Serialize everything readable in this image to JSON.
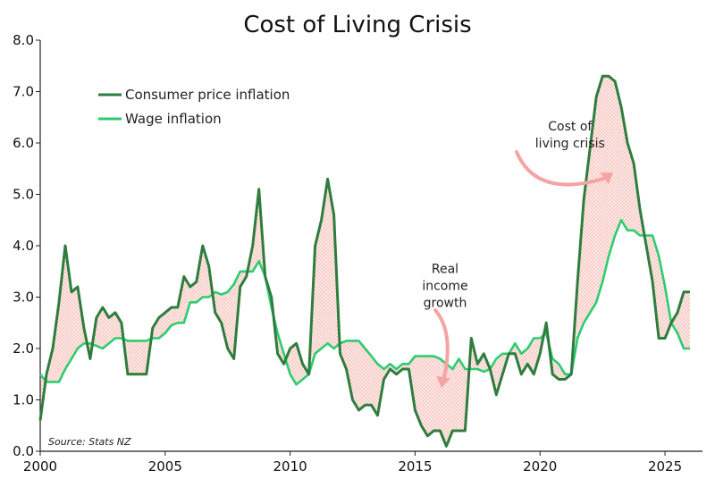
{
  "chart_data": {
    "type": "line",
    "title": "Cost of Living Crisis",
    "source": "Source: Stats NZ",
    "xlim": [
      2000,
      2026.5
    ],
    "ylim": [
      0,
      8
    ],
    "x_ticks": [
      "2000",
      "2005",
      "2010",
      "2015",
      "2020",
      "2025"
    ],
    "y_ticks": [
      "0.0",
      "1.0",
      "2.0",
      "3.0",
      "4.0",
      "5.0",
      "6.0",
      "7.0",
      "8.0"
    ],
    "legend_position": "top-left",
    "colors": {
      "cpi": "#2e7d3e",
      "wage": "#2ecc71",
      "fill": "#f4a9a0",
      "arrow": "#f5a3a3"
    },
    "series": [
      {
        "name": "Consumer price inflation",
        "x": [
          2000.0,
          2000.25,
          2000.5,
          2000.75,
          2001.0,
          2001.25,
          2001.5,
          2001.75,
          2002.0,
          2002.25,
          2002.5,
          2002.75,
          2003.0,
          2003.25,
          2003.5,
          2003.75,
          2004.0,
          2004.25,
          2004.5,
          2004.75,
          2005.0,
          2005.25,
          2005.5,
          2005.75,
          2006.0,
          2006.25,
          2006.5,
          2006.75,
          2007.0,
          2007.25,
          2007.5,
          2007.75,
          2008.0,
          2008.25,
          2008.5,
          2008.75,
          2009.0,
          2009.25,
          2009.5,
          2009.75,
          2010.0,
          2010.25,
          2010.5,
          2010.75,
          2011.0,
          2011.25,
          2011.5,
          2011.75,
          2012.0,
          2012.25,
          2012.5,
          2012.75,
          2013.0,
          2013.25,
          2013.5,
          2013.75,
          2014.0,
          2014.25,
          2014.5,
          2014.75,
          2015.0,
          2015.25,
          2015.5,
          2015.75,
          2016.0,
          2016.25,
          2016.5,
          2016.75,
          2017.0,
          2017.25,
          2017.5,
          2017.75,
          2018.0,
          2018.25,
          2018.5,
          2018.75,
          2019.0,
          2019.25,
          2019.5,
          2019.75,
          2020.0,
          2020.25,
          2020.5,
          2020.75,
          2021.0,
          2021.25,
          2021.5,
          2021.75,
          2022.0,
          2022.25,
          2022.5,
          2022.75,
          2023.0,
          2023.25,
          2023.5,
          2023.75,
          2024.0,
          2024.25,
          2024.5,
          2024.75,
          2025.0,
          2025.25,
          2025.5,
          2025.75,
          2026.0
        ],
        "values": [
          0.6,
          1.5,
          2.0,
          2.9,
          4.0,
          3.1,
          3.2,
          2.4,
          1.8,
          2.6,
          2.8,
          2.6,
          2.7,
          2.5,
          1.5,
          1.5,
          1.5,
          1.5,
          2.4,
          2.6,
          2.7,
          2.8,
          2.8,
          3.4,
          3.2,
          3.3,
          4.0,
          3.6,
          2.7,
          2.5,
          2.0,
          1.8,
          3.2,
          3.4,
          4.0,
          5.1,
          3.4,
          3.0,
          1.9,
          1.7,
          2.0,
          2.1,
          1.7,
          1.5,
          4.0,
          4.5,
          5.3,
          4.6,
          1.9,
          1.6,
          1.0,
          0.8,
          0.9,
          0.9,
          0.7,
          1.4,
          1.6,
          1.5,
          1.6,
          1.6,
          0.8,
          0.5,
          0.3,
          0.4,
          0.4,
          0.1,
          0.4,
          0.4,
          0.4,
          2.2,
          1.7,
          1.9,
          1.6,
          1.1,
          1.5,
          1.9,
          1.9,
          1.5,
          1.7,
          1.5,
          1.9,
          2.5,
          1.5,
          1.4,
          1.4,
          1.5,
          3.3,
          4.9,
          5.9,
          6.9,
          7.3,
          7.3,
          7.2,
          6.7,
          6.0,
          5.6,
          4.7,
          4.0,
          3.3,
          2.2,
          2.2,
          2.5,
          2.7,
          3.1,
          3.1
        ]
      },
      {
        "name": "Wage inflation",
        "x": [
          2000.0,
          2000.25,
          2000.5,
          2000.75,
          2001.0,
          2001.25,
          2001.5,
          2001.75,
          2002.0,
          2002.25,
          2002.5,
          2002.75,
          2003.0,
          2003.25,
          2003.5,
          2003.75,
          2004.0,
          2004.25,
          2004.5,
          2004.75,
          2005.0,
          2005.25,
          2005.5,
          2005.75,
          2006.0,
          2006.25,
          2006.5,
          2006.75,
          2007.0,
          2007.25,
          2007.5,
          2007.75,
          2008.0,
          2008.25,
          2008.5,
          2008.75,
          2009.0,
          2009.25,
          2009.5,
          2009.75,
          2010.0,
          2010.25,
          2010.5,
          2010.75,
          2011.0,
          2011.25,
          2011.5,
          2011.75,
          2012.0,
          2012.25,
          2012.5,
          2012.75,
          2013.0,
          2013.25,
          2013.5,
          2013.75,
          2014.0,
          2014.25,
          2014.5,
          2014.75,
          2015.0,
          2015.25,
          2015.5,
          2015.75,
          2016.0,
          2016.25,
          2016.5,
          2016.75,
          2017.0,
          2017.25,
          2017.5,
          2017.75,
          2018.0,
          2018.25,
          2018.5,
          2018.75,
          2019.0,
          2019.25,
          2019.5,
          2019.75,
          2020.0,
          2020.25,
          2020.5,
          2020.75,
          2021.0,
          2021.25,
          2021.5,
          2021.75,
          2022.0,
          2022.25,
          2022.5,
          2022.75,
          2023.0,
          2023.25,
          2023.5,
          2023.75,
          2024.0,
          2024.25,
          2024.5,
          2024.75,
          2025.0,
          2025.25,
          2025.5,
          2025.75,
          2026.0
        ],
        "values": [
          1.5,
          1.35,
          1.35,
          1.35,
          1.6,
          1.8,
          2.0,
          2.1,
          2.1,
          2.05,
          2.0,
          2.1,
          2.2,
          2.2,
          2.15,
          2.15,
          2.15,
          2.15,
          2.2,
          2.2,
          2.3,
          2.45,
          2.5,
          2.5,
          2.9,
          2.9,
          3.0,
          3.0,
          3.1,
          3.05,
          3.1,
          3.25,
          3.5,
          3.5,
          3.5,
          3.7,
          3.4,
          2.8,
          2.3,
          1.9,
          1.5,
          1.3,
          1.4,
          1.5,
          1.9,
          2.0,
          2.1,
          2.0,
          2.1,
          2.15,
          2.15,
          2.15,
          2.0,
          1.85,
          1.7,
          1.6,
          1.7,
          1.6,
          1.7,
          1.7,
          1.85,
          1.85,
          1.85,
          1.85,
          1.8,
          1.7,
          1.6,
          1.8,
          1.6,
          1.6,
          1.6,
          1.55,
          1.6,
          1.8,
          1.9,
          1.9,
          2.1,
          1.9,
          2.0,
          2.2,
          2.2,
          2.3,
          1.8,
          1.7,
          1.5,
          1.5,
          2.2,
          2.5,
          2.7,
          2.9,
          3.3,
          3.8,
          4.2,
          4.5,
          4.3,
          4.3,
          4.2,
          4.2,
          4.2,
          3.8,
          3.2,
          2.5,
          2.3,
          2.0,
          2.0
        ]
      }
    ],
    "annotations": [
      {
        "lines": [
          "Cost of",
          "living crisis"
        ],
        "x": 2021.2,
        "y": 6.0
      },
      {
        "lines": [
          "Real",
          "income",
          "growth"
        ],
        "x": 2016.2,
        "y": 2.9
      }
    ]
  }
}
